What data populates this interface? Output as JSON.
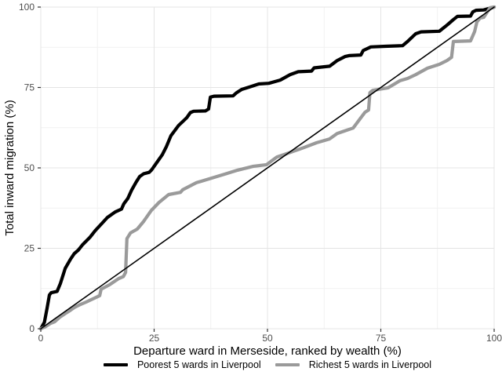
{
  "figure": {
    "background": "#ffffff"
  },
  "colors": {
    "major_grid": "#e4e4e4",
    "minor_grid": "#f1f1f1",
    "tick_mark": "#333333",
    "tick_label": "#4d4d4d",
    "axis_title": "#000000",
    "series_black": "#000000",
    "series_gray": "#9a9a9a"
  },
  "legend": {
    "items": [
      {
        "label": "Poorest 5 wards in Liverpool",
        "color": "#000000"
      },
      {
        "label": "Richest 5 wards in Liverpool",
        "color": "#9a9a9a"
      }
    ]
  },
  "chart_data": {
    "type": "line",
    "title": "",
    "xlabel": "Departure ward in Merseside, ranked by wealth (%)",
    "ylabel": "Total inward migration (%)",
    "xlim": [
      0,
      100
    ],
    "ylim": [
      0,
      100
    ],
    "x_ticks": [
      0,
      25,
      50,
      75,
      100
    ],
    "y_ticks": [
      0,
      25,
      50,
      75,
      100
    ],
    "x_minor_ticks": [
      12.5,
      37.5,
      62.5,
      87.5
    ],
    "y_minor_ticks": [
      12.5,
      37.5,
      62.5,
      87.5
    ],
    "grid": "major+minor",
    "legend_position": "bottom",
    "series": [
      {
        "name": "Poorest 5 wards in Liverpool",
        "id": "poorest-5-wards",
        "color": "#000000",
        "width": 4.2,
        "in_legend": true,
        "points": [
          [
            0,
            0
          ],
          [
            0.8,
            2
          ],
          [
            1.4,
            6.5
          ],
          [
            1.9,
            10.5
          ],
          [
            2.3,
            11.2
          ],
          [
            3.6,
            11.6
          ],
          [
            4.3,
            14
          ],
          [
            5.4,
            18.8
          ],
          [
            6.6,
            21.7
          ],
          [
            7.4,
            23.4
          ],
          [
            8.3,
            24.5
          ],
          [
            9.2,
            26.1
          ],
          [
            10.9,
            28.5
          ],
          [
            12,
            30.5
          ],
          [
            13,
            32
          ],
          [
            14.7,
            34.6
          ],
          [
            16.4,
            36.3
          ],
          [
            17.8,
            37.2
          ],
          [
            18.3,
            38.8
          ],
          [
            19.2,
            40.5
          ],
          [
            20,
            43
          ],
          [
            21,
            45.5
          ],
          [
            21.8,
            47.3
          ],
          [
            22.7,
            48.2
          ],
          [
            23.9,
            48.6
          ],
          [
            24.4,
            49.3
          ],
          [
            25.6,
            51.7
          ],
          [
            26.8,
            54.1
          ],
          [
            27.7,
            56.6
          ],
          [
            28.7,
            60
          ],
          [
            30.4,
            63.2
          ],
          [
            31.3,
            64.4
          ],
          [
            32.2,
            65.6
          ],
          [
            33,
            67.2
          ],
          [
            33.7,
            67.6
          ],
          [
            36.3,
            67.7
          ],
          [
            37,
            68.3
          ],
          [
            37.4,
            72
          ],
          [
            38.2,
            72.3
          ],
          [
            42.4,
            72.4
          ],
          [
            43.2,
            73.4
          ],
          [
            44.3,
            74.4
          ],
          [
            46.1,
            75.2
          ],
          [
            48.1,
            76.1
          ],
          [
            50.3,
            76.3
          ],
          [
            52.8,
            77.3
          ],
          [
            55,
            79
          ],
          [
            56.8,
            79.9
          ],
          [
            59.7,
            80.1
          ],
          [
            60.3,
            81.1
          ],
          [
            63.7,
            81.6
          ],
          [
            65.4,
            83.4
          ],
          [
            67.1,
            84.6
          ],
          [
            68,
            84.9
          ],
          [
            70.6,
            85.1
          ],
          [
            71.1,
            86.5
          ],
          [
            72.8,
            87.6
          ],
          [
            76,
            87.8
          ],
          [
            79.8,
            88
          ],
          [
            80.9,
            89.3
          ],
          [
            82.7,
            91.7
          ],
          [
            83.9,
            92.3
          ],
          [
            87.9,
            92.5
          ],
          [
            89.6,
            94.4
          ],
          [
            91,
            96.1
          ],
          [
            91.9,
            97.1
          ],
          [
            94.8,
            97.2
          ],
          [
            95.3,
            98.5
          ],
          [
            96,
            99
          ],
          [
            97.7,
            99.1
          ],
          [
            100,
            100
          ]
        ]
      },
      {
        "name": "Richest 5 wards in Liverpool",
        "id": "richest-5-wards",
        "color": "#9a9a9a",
        "width": 4.2,
        "in_legend": true,
        "points": [
          [
            0,
            0
          ],
          [
            1,
            0.6
          ],
          [
            2.2,
            1.7
          ],
          [
            3.1,
            2.2
          ],
          [
            4.2,
            3.6
          ],
          [
            5.5,
            4.8
          ],
          [
            6.5,
            5.7
          ],
          [
            7.4,
            6.6
          ],
          [
            8.5,
            7.4
          ],
          [
            10,
            8.3
          ],
          [
            11.8,
            9.5
          ],
          [
            13,
            10.3
          ],
          [
            13.3,
            12.3
          ],
          [
            15.2,
            13.7
          ],
          [
            17.2,
            15.6
          ],
          [
            18.2,
            16.2
          ],
          [
            18.7,
            17.5
          ],
          [
            19,
            28
          ],
          [
            19.8,
            29.8
          ],
          [
            21.3,
            31
          ],
          [
            22.7,
            33.4
          ],
          [
            24.4,
            36.8
          ],
          [
            26.1,
            39.3
          ],
          [
            28.2,
            41.7
          ],
          [
            30.8,
            42.4
          ],
          [
            31.3,
            43.2
          ],
          [
            34.3,
            45.4
          ],
          [
            37.2,
            46.6
          ],
          [
            40.7,
            48.1
          ],
          [
            43.4,
            49.3
          ],
          [
            46.9,
            50.5
          ],
          [
            49.8,
            51
          ],
          [
            52.1,
            53.4
          ],
          [
            55,
            54.8
          ],
          [
            58,
            56.3
          ],
          [
            60.8,
            57.8
          ],
          [
            63.7,
            59
          ],
          [
            65.4,
            60.7
          ],
          [
            67.1,
            61.5
          ],
          [
            68.9,
            62.4
          ],
          [
            70.6,
            65.6
          ],
          [
            71.5,
            67.3
          ],
          [
            72.3,
            68
          ],
          [
            72.6,
            73.4
          ],
          [
            73.2,
            74.1
          ],
          [
            76.6,
            74.9
          ],
          [
            79.2,
            77.1
          ],
          [
            80.9,
            77.8
          ],
          [
            82.7,
            79
          ],
          [
            85.3,
            81
          ],
          [
            87.9,
            82.2
          ],
          [
            89.6,
            83.4
          ],
          [
            90.6,
            84.4
          ],
          [
            91,
            89.3
          ],
          [
            94.8,
            89.5
          ],
          [
            95.7,
            92.4
          ],
          [
            96.2,
            95.4
          ],
          [
            96.9,
            96.6
          ],
          [
            97.7,
            96.8
          ],
          [
            99.1,
            99.8
          ],
          [
            100,
            100
          ]
        ]
      },
      {
        "name": "Equality reference line (y = x)",
        "id": "equality-line",
        "color": "#000000",
        "width": 1.6,
        "in_legend": false,
        "points": [
          [
            0,
            0
          ],
          [
            100,
            100
          ]
        ]
      }
    ]
  }
}
